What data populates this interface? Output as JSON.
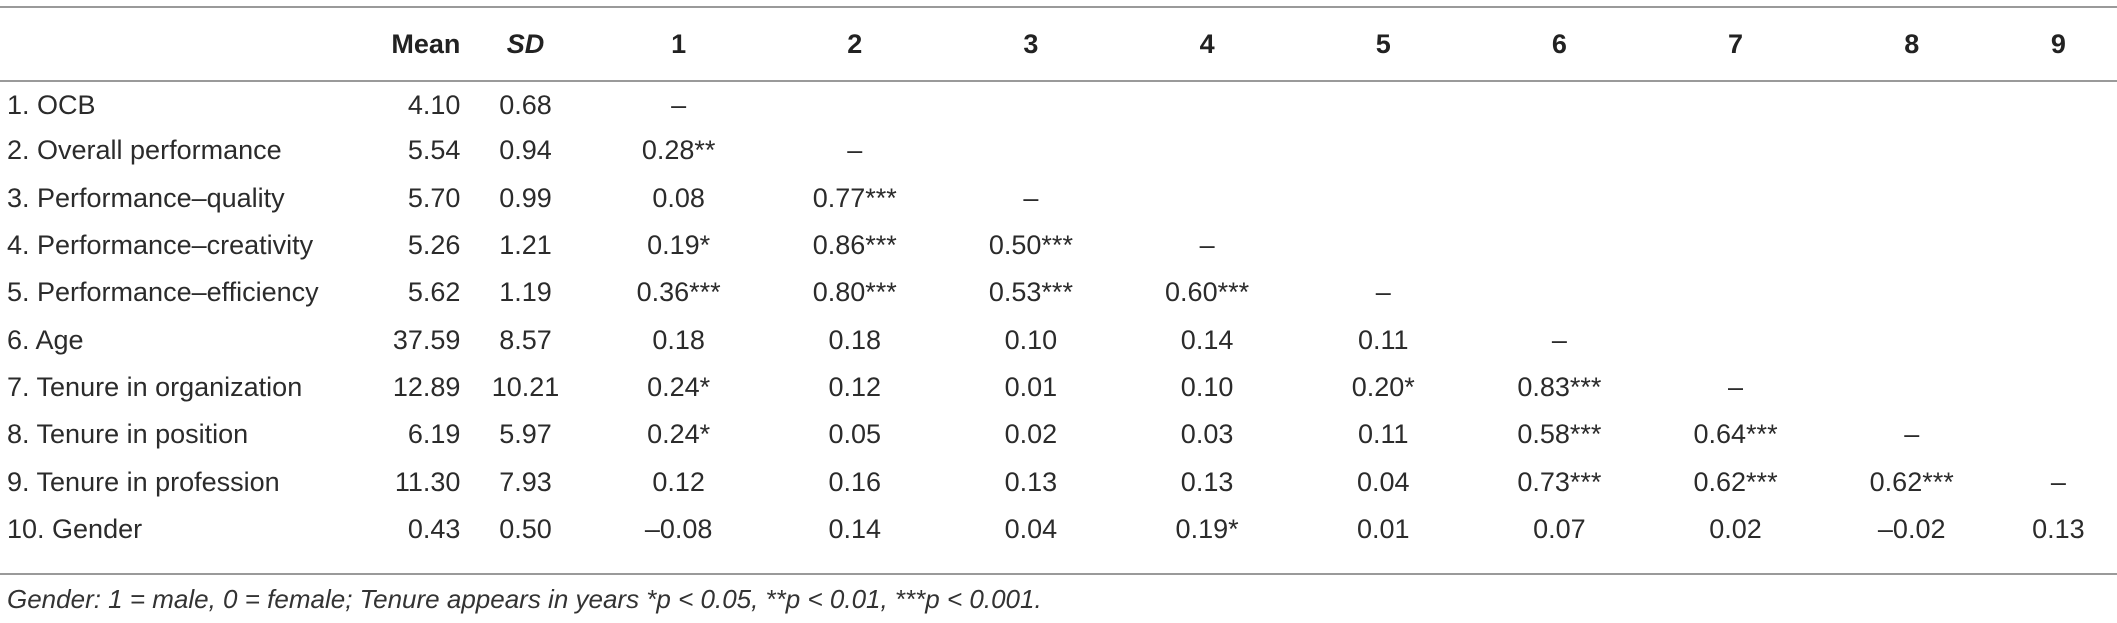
{
  "table": {
    "headers": [
      "",
      "Mean",
      "SD",
      "1",
      "2",
      "3",
      "4",
      "5",
      "6",
      "7",
      "8",
      "9"
    ],
    "rows": [
      {
        "label": "1. OCB",
        "mean": "4.10",
        "sd": "0.68",
        "cells": [
          "–",
          "",
          "",
          "",
          "",
          "",
          "",
          "",
          ""
        ]
      },
      {
        "label": "2. Overall performance",
        "mean": "5.54",
        "sd": "0.94",
        "cells": [
          "0.28**",
          "–",
          "",
          "",
          "",
          "",
          "",
          "",
          ""
        ]
      },
      {
        "label": "3. Performance–quality",
        "mean": "5.70",
        "sd": "0.99",
        "cells": [
          "0.08",
          "0.77***",
          "–",
          "",
          "",
          "",
          "",
          "",
          ""
        ]
      },
      {
        "label": "4. Performance–creativity",
        "mean": "5.26",
        "sd": "1.21",
        "cells": [
          "0.19*",
          "0.86***",
          "0.50***",
          "–",
          "",
          "",
          "",
          "",
          ""
        ]
      },
      {
        "label": "5. Performance–efficiency",
        "mean": "5.62",
        "sd": "1.19",
        "cells": [
          "0.36***",
          "0.80***",
          "0.53***",
          "0.60***",
          "–",
          "",
          "",
          "",
          ""
        ]
      },
      {
        "label": "6. Age",
        "mean": "37.59",
        "sd": "8.57",
        "cells": [
          "0.18",
          "0.18",
          "0.10",
          "0.14",
          "0.11",
          "–",
          "",
          "",
          ""
        ]
      },
      {
        "label": "7. Tenure in organization",
        "mean": "12.89",
        "sd": "10.21",
        "cells": [
          "0.24*",
          "0.12",
          "0.01",
          "0.10",
          "0.20*",
          "0.83***",
          "–",
          "",
          ""
        ]
      },
      {
        "label": "8. Tenure in position",
        "mean": "6.19",
        "sd": "5.97",
        "cells": [
          "0.24*",
          "0.05",
          "0.02",
          "0.03",
          "0.11",
          "0.58***",
          "0.64***",
          "–",
          ""
        ]
      },
      {
        "label": "9. Tenure in profession",
        "mean": "11.30",
        "sd": "7.93",
        "cells": [
          "0.12",
          "0.16",
          "0.13",
          "0.13",
          "0.04",
          "0.73***",
          "0.62***",
          "0.62***",
          "–"
        ]
      },
      {
        "label": "10. Gender",
        "mean": "0.43",
        "sd": "0.50",
        "cells": [
          "–0.08",
          "0.14",
          "0.04",
          "0.19*",
          "0.01",
          "0.07",
          "0.02",
          "–0.02",
          "0.13"
        ]
      }
    ]
  },
  "note": "Gender: 1 = male, 0 = female; Tenure appears in years *p < 0.05, **p < 0.01, ***p < 0.001."
}
